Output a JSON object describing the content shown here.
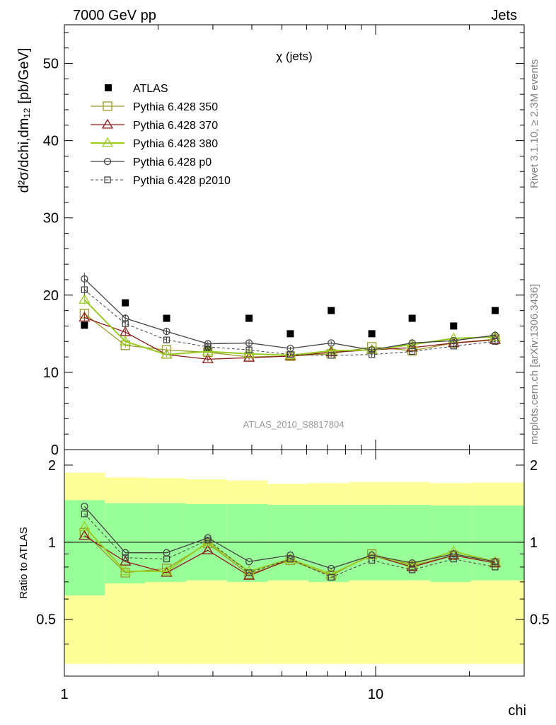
{
  "header": {
    "left": "7000 GeV pp",
    "right": "Jets"
  },
  "side_labels": {
    "rivet": "Rivet 3.1.10, ≥ 2.3M events",
    "mcplots": "mcplots.cern.ch [arXiv:1306.3436]"
  },
  "chart_data": [
    {
      "type": "scatter",
      "panel": "main",
      "title": "χ (jets)",
      "ylabel": "d²σ/dchi,dm₁₂ [pb/GeV]",
      "ylim": [
        0,
        55
      ],
      "xlim": [
        1,
        30
      ],
      "xscale": "log",
      "yticks": [
        "0",
        "10",
        "20",
        "30",
        "40",
        "50"
      ],
      "watermark": "ATLAS_2010_S8817804",
      "legend_position": "top-left",
      "x": [
        1.16,
        1.57,
        2.13,
        2.89,
        3.92,
        5.32,
        7.2,
        9.72,
        13.1,
        17.8,
        24.2
      ],
      "series": [
        {
          "name": "ATLAS",
          "style": "data",
          "color": "#000000",
          "values": [
            16.1,
            19.0,
            17.0,
            13.0,
            17.0,
            15.0,
            18.0,
            15.0,
            17.0,
            16.0,
            18.0
          ]
        },
        {
          "name": "Pythia 6.428 350",
          "style": "square",
          "color": "#9b9b28",
          "values": [
            17.6,
            13.5,
            12.9,
            12.6,
            12.0,
            12.1,
            12.4,
            13.3,
            12.8,
            13.8,
            14.3
          ],
          "errors": [
            0.6,
            0.3,
            0.3,
            0.3,
            0.3,
            0.2,
            0.2,
            0.3,
            0.2,
            0.2,
            0.3
          ]
        },
        {
          "name": "Pythia 6.428 370",
          "style": "triangle",
          "color": "#8b1a1a",
          "values": [
            17.1,
            15.2,
            12.3,
            11.7,
            11.9,
            12.1,
            12.6,
            12.9,
            13.2,
            13.8,
            14.2
          ],
          "errors": [
            0.6,
            0.4,
            0.3,
            0.3,
            0.3,
            0.2,
            0.2,
            0.3,
            0.2,
            0.2,
            0.3
          ]
        },
        {
          "name": "Pythia 6.428 380",
          "style": "triangle",
          "color": "#99cc22",
          "values": [
            19.4,
            14.0,
            12.3,
            12.7,
            12.4,
            12.2,
            12.8,
            12.9,
            13.6,
            14.4,
            14.6
          ],
          "errors": [
            0.6,
            0.4,
            0.3,
            0.3,
            0.3,
            0.2,
            0.2,
            0.3,
            0.2,
            0.2,
            0.3
          ]
        },
        {
          "name": "Pythia 6.428 p0",
          "style": "circle",
          "color": "#444444",
          "values": [
            22.1,
            17.0,
            15.3,
            13.7,
            13.8,
            13.1,
            13.8,
            12.9,
            13.8,
            14.1,
            14.8
          ],
          "errors": [
            0.8,
            0.5,
            0.4,
            0.3,
            0.3,
            0.2,
            0.2,
            0.3,
            0.2,
            0.2,
            0.3
          ]
        },
        {
          "name": "Pythia 6.428 p2010",
          "style": "square-dashed",
          "color": "#444444",
          "values": [
            20.7,
            16.3,
            14.2,
            13.3,
            12.9,
            12.3,
            12.2,
            12.3,
            12.7,
            13.4,
            14.0
          ],
          "errors": [
            0.7,
            0.4,
            0.3,
            0.3,
            0.3,
            0.2,
            0.2,
            0.3,
            0.2,
            0.2,
            0.3
          ]
        }
      ]
    },
    {
      "type": "scatter",
      "panel": "ratio",
      "ylabel": "Ratio to ATLAS",
      "ylim": [
        0.3,
        2.3
      ],
      "yscale": "log",
      "yticks": [
        "0.5",
        "1",
        "2"
      ],
      "xlabel": "chi",
      "xticks": [
        "1",
        "10"
      ],
      "x_edges": [
        1.0,
        1.35,
        1.82,
        2.46,
        3.33,
        4.5,
        6.08,
        8.22,
        11.1,
        15.0,
        20.3,
        30.0
      ],
      "bands": {
        "inner_color": "#99ff99",
        "outer_color": "#ffff99",
        "inner_lo": [
          0.62,
          0.69,
          0.7,
          0.71,
          0.7,
          0.71,
          0.7,
          0.71,
          0.71,
          0.7,
          0.71
        ],
        "inner_hi": [
          1.46,
          1.42,
          1.42,
          1.41,
          1.41,
          1.4,
          1.4,
          1.4,
          1.4,
          1.39,
          1.39
        ],
        "outer_lo": [
          0.335,
          0.335,
          0.335,
          0.335,
          0.335,
          0.335,
          0.335,
          0.335,
          0.335,
          0.335,
          0.335
        ],
        "outer_hi": [
          1.87,
          1.79,
          1.78,
          1.76,
          1.74,
          1.69,
          1.7,
          1.72,
          1.72,
          1.7,
          1.71
        ]
      },
      "x": [
        1.16,
        1.57,
        2.13,
        2.89,
        3.92,
        5.32,
        7.2,
        9.72,
        13.1,
        17.8,
        24.2
      ],
      "series": [
        {
          "name": "Pythia 6.428 350",
          "style": "square",
          "color": "#9b9b28",
          "values": [
            1.09,
            0.76,
            0.79,
            0.99,
            0.75,
            0.85,
            0.74,
            0.9,
            0.81,
            0.89,
            0.83
          ]
        },
        {
          "name": "Pythia 6.428 370",
          "style": "triangle",
          "color": "#8b1a1a",
          "values": [
            1.06,
            0.84,
            0.76,
            0.93,
            0.74,
            0.86,
            0.75,
            0.89,
            0.8,
            0.89,
            0.83
          ]
        },
        {
          "name": "Pythia 6.428 380",
          "style": "triangle",
          "color": "#99cc22",
          "values": [
            1.15,
            0.77,
            0.77,
            1.0,
            0.77,
            0.86,
            0.75,
            0.89,
            0.82,
            0.92,
            0.84
          ]
        },
        {
          "name": "Pythia 6.428 p0",
          "style": "circle",
          "color": "#444444",
          "values": [
            1.38,
            0.91,
            0.91,
            1.04,
            0.84,
            0.89,
            0.79,
            0.89,
            0.83,
            0.9,
            0.84
          ]
        },
        {
          "name": "Pythia 6.428 p2010",
          "style": "square-dashed",
          "color": "#444444",
          "values": [
            1.29,
            0.87,
            0.86,
            1.02,
            0.76,
            0.86,
            0.73,
            0.85,
            0.78,
            0.86,
            0.8
          ]
        }
      ]
    }
  ]
}
